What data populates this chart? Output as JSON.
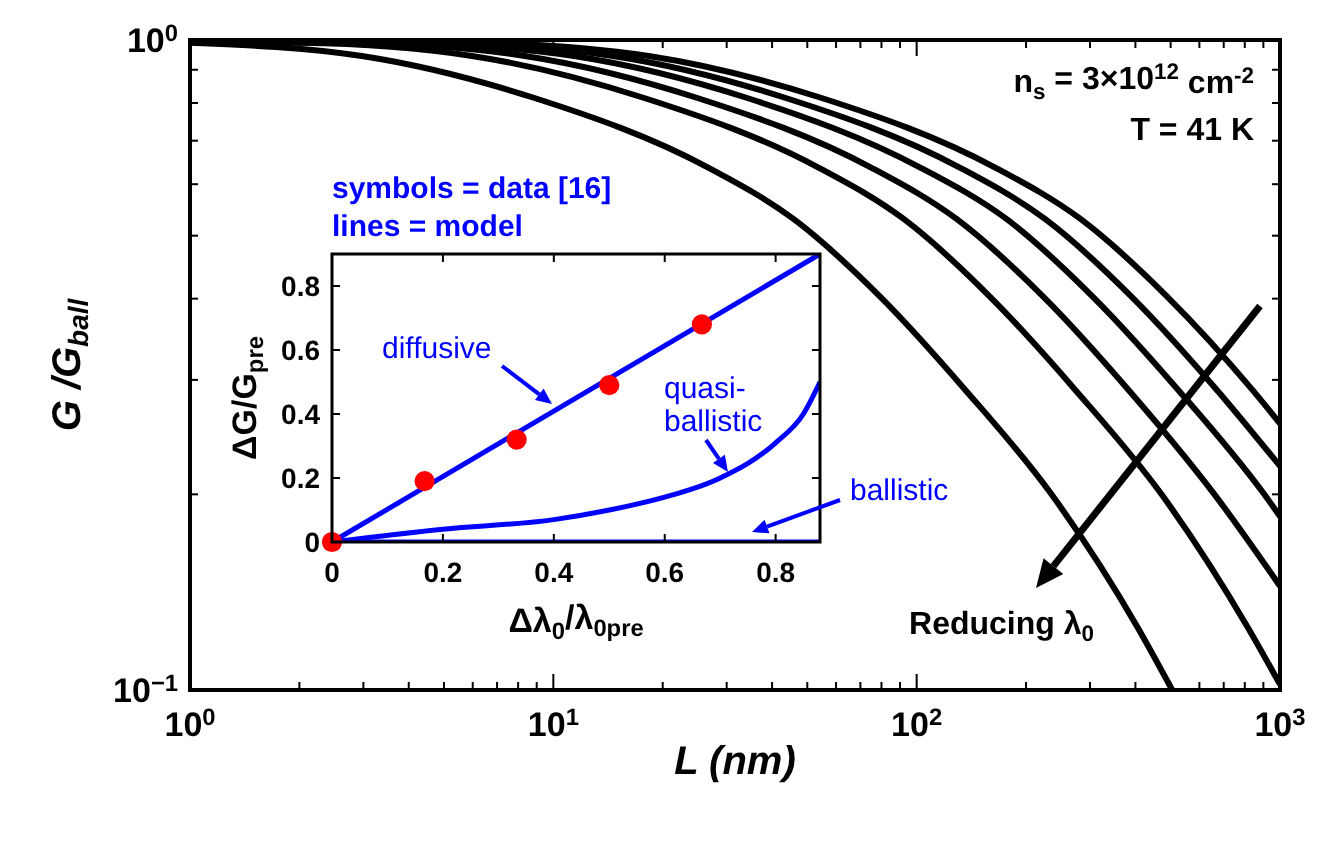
{
  "chart_data": [
    {
      "type": "line",
      "xlabel": "L (nm)",
      "ylabel": "G /G$_{ball}$",
      "log": "xy",
      "xlim": [
        1,
        1000
      ],
      "ylim": [
        0.1,
        1
      ],
      "xticks": [
        {
          "value": 1,
          "label": "10$^{0}$"
        },
        {
          "value": 2,
          "label": null
        },
        {
          "value": 3,
          "label": null
        },
        {
          "value": 4,
          "label": null
        },
        {
          "value": 5,
          "label": null
        },
        {
          "value": 6,
          "label": null
        },
        {
          "value": 7,
          "label": null
        },
        {
          "value": 8,
          "label": null
        },
        {
          "value": 9,
          "label": null
        },
        {
          "value": 10,
          "label": "10$^{1}$"
        },
        {
          "value": 20,
          "label": null
        },
        {
          "value": 30,
          "label": null
        },
        {
          "value": 40,
          "label": null
        },
        {
          "value": 50,
          "label": null
        },
        {
          "value": 60,
          "label": null
        },
        {
          "value": 70,
          "label": null
        },
        {
          "value": 80,
          "label": null
        },
        {
          "value": 90,
          "label": null
        },
        {
          "value": 100,
          "label": "10$^{2}$"
        },
        {
          "value": 200,
          "label": null
        },
        {
          "value": 300,
          "label": null
        },
        {
          "value": 400,
          "label": null
        },
        {
          "value": 500,
          "label": null
        },
        {
          "value": 600,
          "label": null
        },
        {
          "value": 700,
          "label": null
        },
        {
          "value": 800,
          "label": null
        },
        {
          "value": 900,
          "label": null
        },
        {
          "value": 1000,
          "label": "10$^{3}$"
        }
      ],
      "yticks": [
        {
          "value": 0.1,
          "label": "10$^{−1}$"
        },
        {
          "value": 0.2,
          "label": null
        },
        {
          "value": 0.3,
          "label": null
        },
        {
          "value": 0.4,
          "label": null
        },
        {
          "value": 0.5,
          "label": null
        },
        {
          "value": 0.6,
          "label": null
        },
        {
          "value": 0.7,
          "label": null
        },
        {
          "value": 0.8,
          "label": null
        },
        {
          "value": 0.9,
          "label": null
        },
        {
          "value": 1,
          "label": "10$^{0}$"
        }
      ],
      "grid": false,
      "line_style": "solid",
      "annotations": [
        "n$_{s}$ = 3×10$^{12}$ cm$^{-2}$",
        "T = 41 K",
        "Reducing λ$_{0}$"
      ],
      "series": [
        {
          "color": "#000000",
          "x": [
            1,
            6.17,
            18.3,
            54.5,
            164,
            283,
            489,
            842,
            1000
          ],
          "values": [
            1.0,
            0.99,
            0.945,
            0.815,
            0.637,
            0.53,
            0.403,
            0.289,
            0.257
          ]
        },
        {
          "color": "#000000",
          "x": [
            1,
            4.92,
            14.6,
            43.4,
            131,
            226,
            390,
            672,
            1000
          ],
          "values": [
            0.998,
            0.99,
            0.945,
            0.815,
            0.637,
            0.53,
            0.403,
            0.289,
            0.221
          ]
        },
        {
          "color": "#000000",
          "x": [
            1,
            3.85,
            11.4,
            34,
            102,
            177,
            305,
            526,
            905,
            1000
          ],
          "values": [
            0.997,
            0.99,
            0.945,
            0.815,
            0.637,
            0.53,
            0.403,
            0.289,
            0.2,
            0.185
          ]
        },
        {
          "color": "#000000",
          "x": [
            1,
            2.81,
            8.35,
            24.8,
            74.7,
            129,
            223,
            384,
            660,
            1000
          ],
          "values": [
            0.995,
            0.99,
            0.945,
            0.815,
            0.637,
            0.53,
            0.403,
            0.289,
            0.2,
            0.1445
          ]
        },
        {
          "color": "#000000",
          "x": [
            1,
            2.01,
            5.97,
            17.7,
            53.5,
            92.3,
            159,
            274,
            472,
            814,
            1000
          ],
          "values": [
            0.993,
            0.99,
            0.945,
            0.815,
            0.637,
            0.53,
            0.403,
            0.289,
            0.2,
            0.125,
            0.102
          ]
        },
        {
          "color": "#000000",
          "x": [
            1,
            2.97,
            8.83,
            26.6,
            45.9,
            79.3,
            136.5,
            235,
            405,
            505
          ],
          "values": [
            0.99,
            0.945,
            0.815,
            0.637,
            0.53,
            0.403,
            0.289,
            0.2,
            0.125,
            0.1
          ]
        }
      ]
    },
    {
      "type": "line",
      "xlabel": "Δλ$_{0}$/λ$_{0pre}$",
      "ylabel": "ΔG/G$_{pre}$",
      "xlim": [
        0,
        0.88
      ],
      "ylim": [
        0,
        0.9
      ],
      "xticks": [
        0,
        0.2,
        0.4,
        0.6,
        0.8
      ],
      "yticks": [
        0,
        0.2,
        0.4,
        0.6,
        0.8
      ],
      "grid": false,
      "line_style": "solid",
      "annotations": [
        "symbols = data [16]",
        "lines = model"
      ],
      "series": [
        {
          "name": "diffusive",
          "color": "#0000ff",
          "x": [
            0,
            0.88
          ],
          "values": [
            0,
            0.9
          ]
        },
        {
          "name": "quasi-ballistic",
          "color": "#0000ff",
          "x": [
            0,
            0.2,
            0.4,
            0.5,
            0.6,
            0.7,
            0.8,
            0.85,
            0.88
          ],
          "values": [
            0,
            0.04,
            0.07,
            0.1,
            0.14,
            0.2,
            0.31,
            0.4,
            0.5
          ]
        },
        {
          "name": "ballistic",
          "color": "#0000ff",
          "x": [
            0,
            0.88
          ],
          "values": [
            0,
            0
          ]
        },
        {
          "type": "scatter",
          "marker": "circle",
          "color": "#ff0000",
          "x": [
            0,
            0.167,
            0.333,
            0.5,
            0.667
          ],
          "values": [
            0,
            0.19,
            0.32,
            0.49,
            0.68
          ]
        }
      ]
    }
  ]
}
